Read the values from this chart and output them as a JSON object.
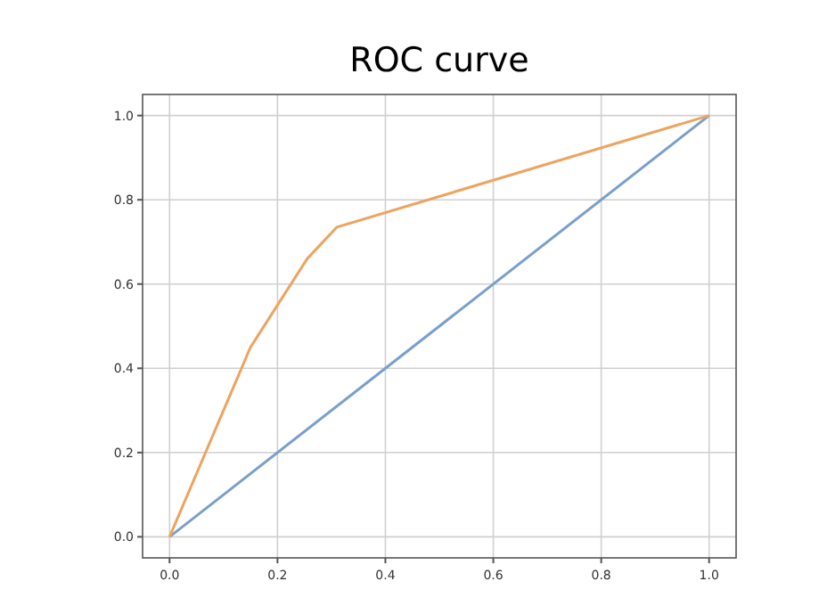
{
  "chart_data": {
    "type": "line",
    "title": "ROC curve",
    "xlim": [
      -0.05,
      1.05
    ],
    "ylim": [
      -0.05,
      1.05
    ],
    "xticks": [
      {
        "value": 0,
        "label": "0.0"
      },
      {
        "value": 0.2,
        "label": "0.2"
      },
      {
        "value": 0.4,
        "label": "0.4"
      },
      {
        "value": 0.6,
        "label": "0.6"
      },
      {
        "value": 0.8,
        "label": "0.8"
      },
      {
        "value": 1,
        "label": "1.0"
      }
    ],
    "yticks": [
      {
        "value": 0,
        "label": "0.0"
      },
      {
        "value": 0.2,
        "label": "0.2"
      },
      {
        "value": 0.4,
        "label": "0.4"
      },
      {
        "value": 0.6,
        "label": "0.6"
      },
      {
        "value": 0.8,
        "label": "0.8"
      },
      {
        "value": 1,
        "label": "1.0"
      }
    ],
    "grid": true,
    "series": [
      {
        "color": "#7a9fcb",
        "x": [
          0,
          1
        ],
        "values": [
          0,
          1
        ]
      },
      {
        "color": "#eda461",
        "x": [
          0,
          0.15,
          0.255,
          0.31,
          1
        ],
        "values": [
          0,
          0.45,
          0.66,
          0.735,
          1
        ]
      }
    ]
  }
}
